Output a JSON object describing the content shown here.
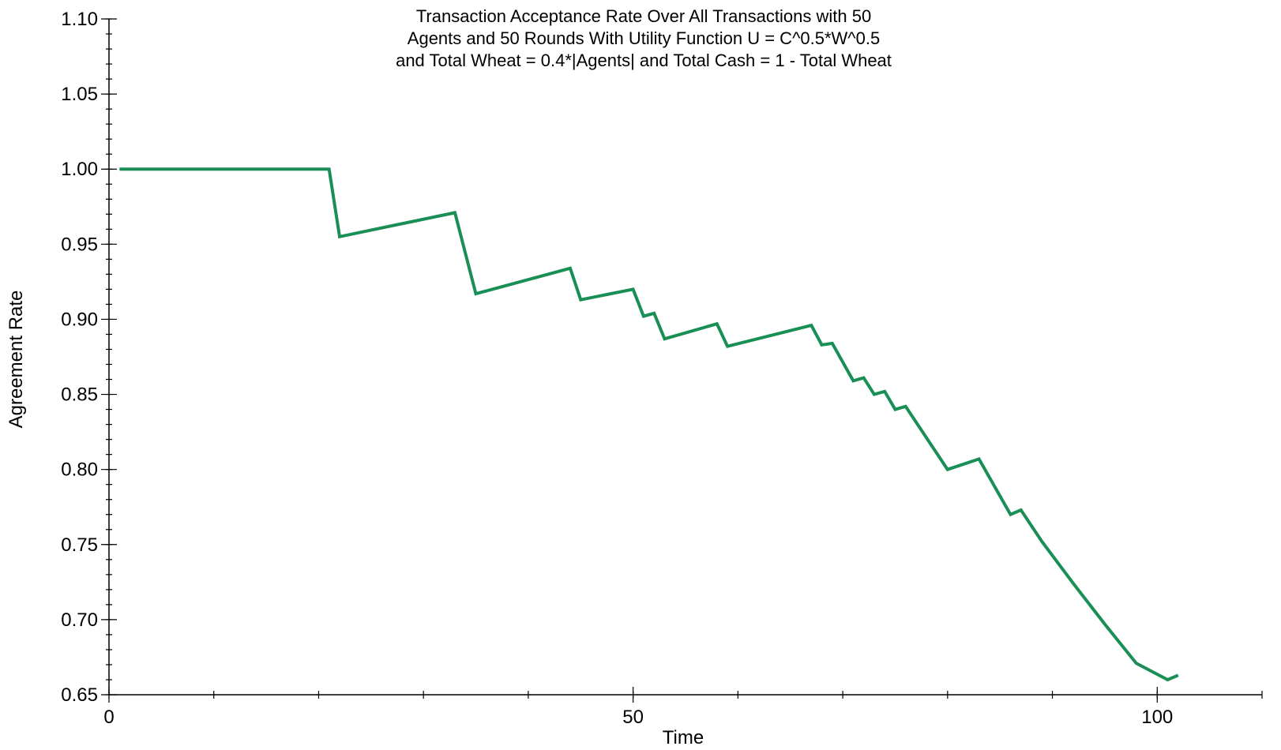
{
  "chart_data": {
    "type": "line",
    "title_lines": [
      "Transaction Acceptance Rate Over All Transactions with 50",
      "Agents and 50 Rounds With Utility Function U = C^0.5*W^0.5",
      "and Total Wheat = 0.4*|Agents| and Total Cash = 1 - Total Wheat"
    ],
    "xlabel": "Time",
    "ylabel": "Agreement Rate",
    "xlim": [
      0,
      110
    ],
    "ylim": [
      0.65,
      1.1
    ],
    "x_ticks": [
      0,
      50,
      100
    ],
    "x_tick_labels": [
      "0",
      "50",
      "100"
    ],
    "y_ticks": [
      0.65,
      0.7,
      0.75,
      0.8,
      0.85,
      0.9,
      0.95,
      1.0,
      1.05,
      1.1
    ],
    "y_tick_labels": [
      "0.65",
      "0.70",
      "0.75",
      "0.80",
      "0.85",
      "0.90",
      "0.95",
      "1.00",
      "1.05",
      "1.10"
    ],
    "grid": false,
    "color": "#1a8f55",
    "series": [
      {
        "x": [
          1,
          21,
          22,
          33,
          35,
          44,
          45,
          50,
          51,
          52,
          53,
          58,
          59,
          67,
          68,
          69,
          71,
          72,
          73,
          74,
          75,
          76,
          80,
          83,
          86,
          87,
          89,
          92,
          95,
          98,
          101,
          102
        ],
        "y": [
          1.0,
          1.0,
          0.955,
          0.971,
          0.917,
          0.934,
          0.913,
          0.92,
          0.902,
          0.904,
          0.887,
          0.897,
          0.882,
          0.896,
          0.883,
          0.884,
          0.859,
          0.861,
          0.85,
          0.852,
          0.84,
          0.842,
          0.8,
          0.807,
          0.77,
          0.773,
          0.752,
          0.724,
          0.697,
          0.671,
          0.66,
          0.663
        ]
      }
    ]
  }
}
